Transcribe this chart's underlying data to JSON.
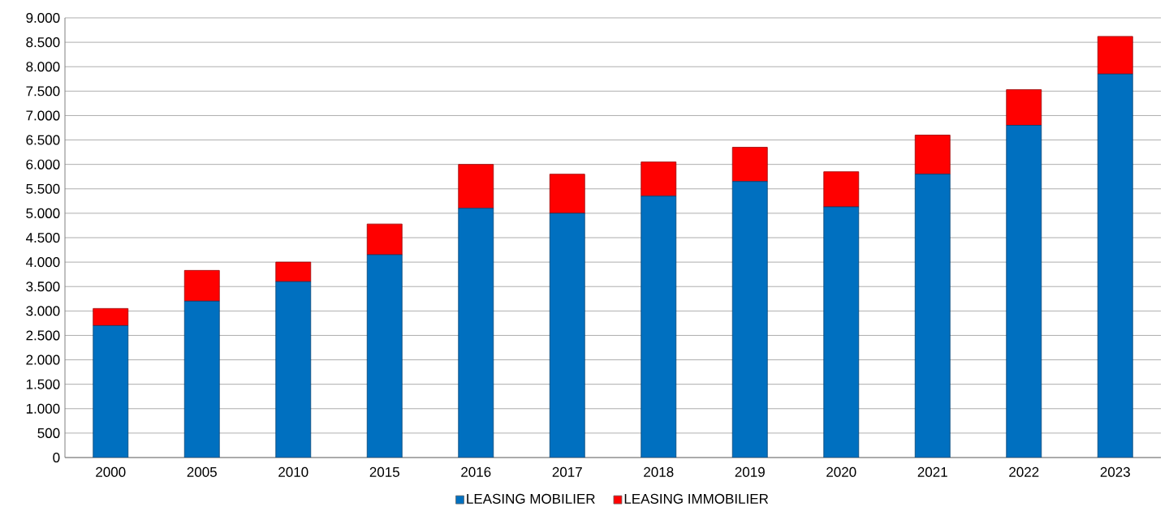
{
  "chart_data": {
    "type": "bar",
    "stacked": true,
    "categories": [
      "2000",
      "2005",
      "2010",
      "2015",
      "2016",
      "2017",
      "2018",
      "2019",
      "2020",
      "2021",
      "2022",
      "2023"
    ],
    "series": [
      {
        "name": "LEASING MOBILIER",
        "color": "#0070c0",
        "values": [
          2700,
          3200,
          3600,
          4150,
          5100,
          5000,
          5350,
          5650,
          5130,
          5800,
          6800,
          7850
        ]
      },
      {
        "name": "LEASING IMMOBILIER",
        "color": "#ff0000",
        "values": [
          350,
          630,
          400,
          630,
          900,
          800,
          700,
          700,
          720,
          800,
          730,
          770
        ]
      }
    ],
    "ylim": [
      0,
      9000
    ],
    "yticks": [
      {
        "value": 0,
        "label": "0"
      },
      {
        "value": 500,
        "label": "500"
      },
      {
        "value": 1000,
        "label": "1.000"
      },
      {
        "value": 1500,
        "label": "1.500"
      },
      {
        "value": 2000,
        "label": "2.000"
      },
      {
        "value": 2500,
        "label": "2.500"
      },
      {
        "value": 3000,
        "label": "3.000"
      },
      {
        "value": 3500,
        "label": "3.500"
      },
      {
        "value": 4000,
        "label": "4.000"
      },
      {
        "value": 4500,
        "label": "4.500"
      },
      {
        "value": 5000,
        "label": "5.000"
      },
      {
        "value": 5500,
        "label": "5.500"
      },
      {
        "value": 6000,
        "label": "6.000"
      },
      {
        "value": 6500,
        "label": "6.500"
      },
      {
        "value": 7000,
        "label": "7.000"
      },
      {
        "value": 7500,
        "label": "7.500"
      },
      {
        "value": 8000,
        "label": "8.000"
      },
      {
        "value": 8500,
        "label": "8.500"
      },
      {
        "value": 9000,
        "label": "9.000"
      }
    ],
    "grid": "y",
    "legend": "bottom"
  }
}
